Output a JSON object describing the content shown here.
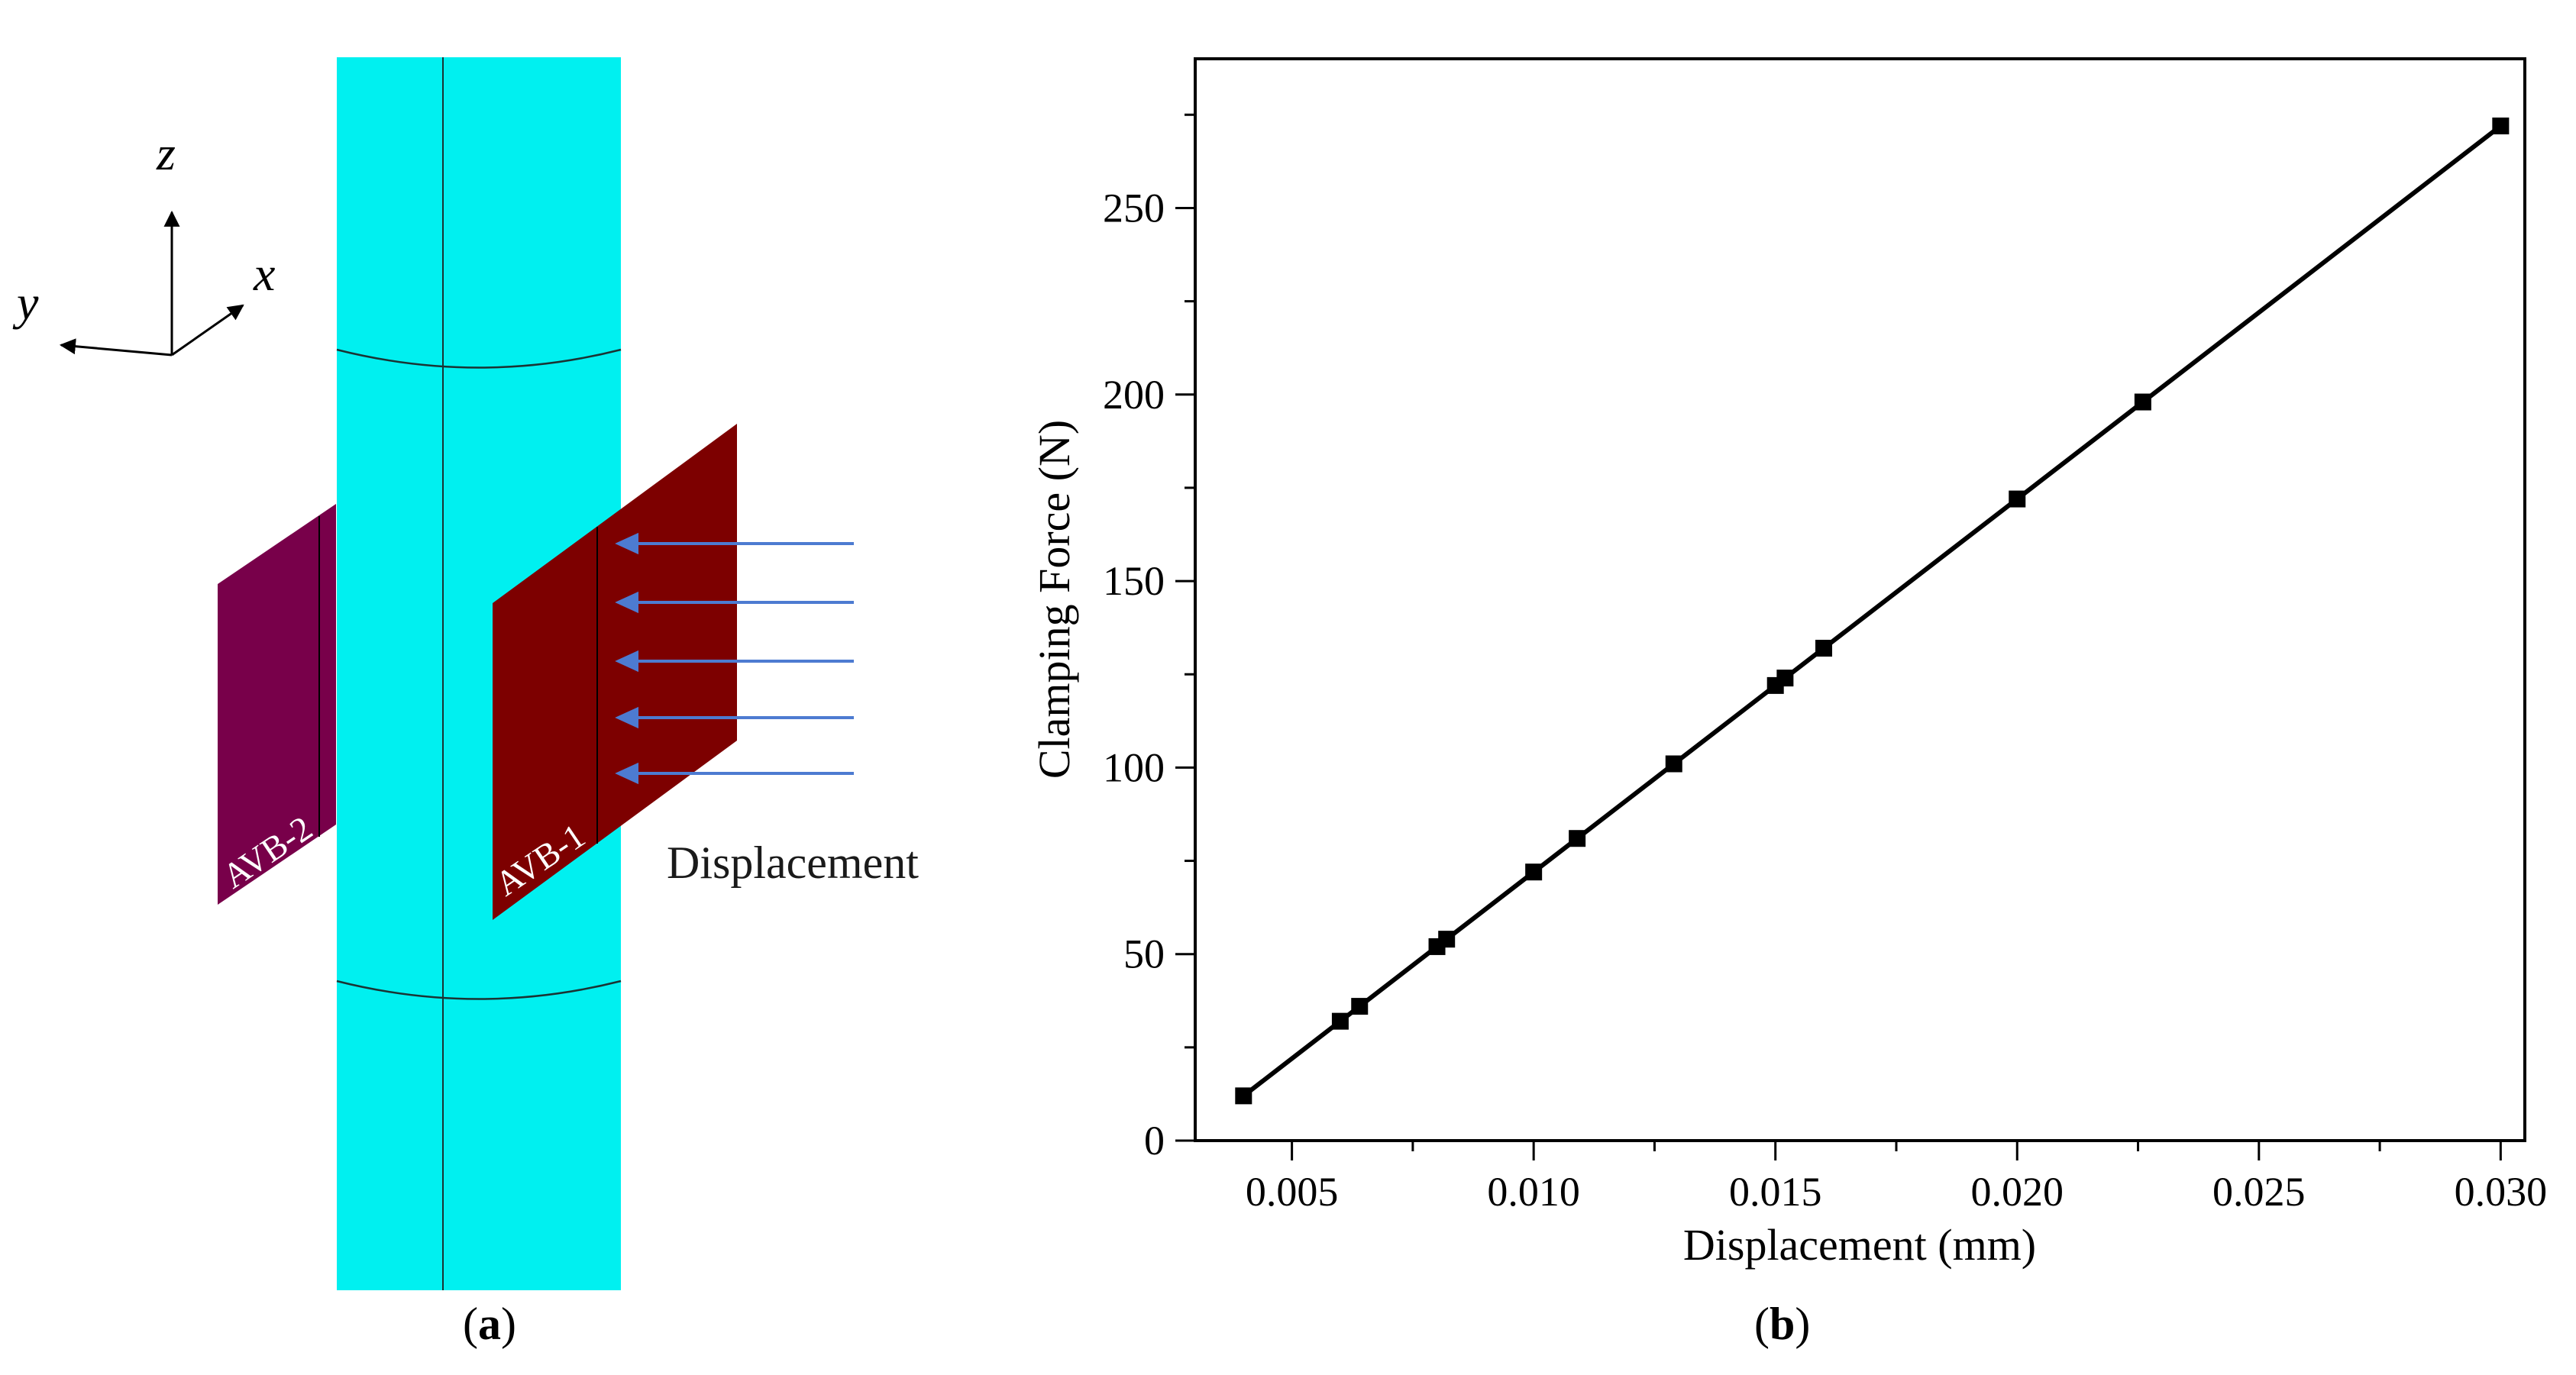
{
  "panel_a": {
    "caption_letter": "a",
    "axes": {
      "z": "z",
      "x": "x",
      "y": "y"
    },
    "plates": [
      {
        "label": "AVB-2",
        "color": "#78004a"
      },
      {
        "label": "AVB-1",
        "color": "#7d0000"
      }
    ],
    "cylinder_color": "#00f0f0",
    "arrow_color": "#4d7bd1",
    "arrow_count": 5,
    "displacement_label": "Displacement"
  },
  "panel_b": {
    "caption_letter": "b"
  },
  "chart_data": {
    "type": "line",
    "title": "",
    "xlabel": "Displacement (mm)",
    "ylabel": "Clamping Force (N)",
    "xlim": [
      0.003,
      0.0305
    ],
    "ylim": [
      0,
      290
    ],
    "xticks": [
      0.005,
      0.01,
      0.015,
      0.02,
      0.025,
      0.03
    ],
    "xtick_labels": [
      "0.005",
      "0.010",
      "0.015",
      "0.020",
      "0.025",
      "0.030"
    ],
    "yticks": [
      0,
      50,
      100,
      150,
      200,
      250
    ],
    "ytick_labels": [
      "0",
      "50",
      "100",
      "150",
      "200",
      "250"
    ],
    "marker": "square",
    "series": [
      {
        "name": "Clamping Force",
        "color": "#000000",
        "x": [
          0.004,
          0.006,
          0.0064,
          0.008,
          0.0082,
          0.01,
          0.0109,
          0.0129,
          0.015,
          0.0152,
          0.016,
          0.02,
          0.0226,
          0.03
        ],
        "y": [
          12,
          32,
          36,
          52,
          54,
          72,
          81,
          101,
          122,
          124,
          132,
          172,
          198,
          272
        ]
      }
    ]
  }
}
